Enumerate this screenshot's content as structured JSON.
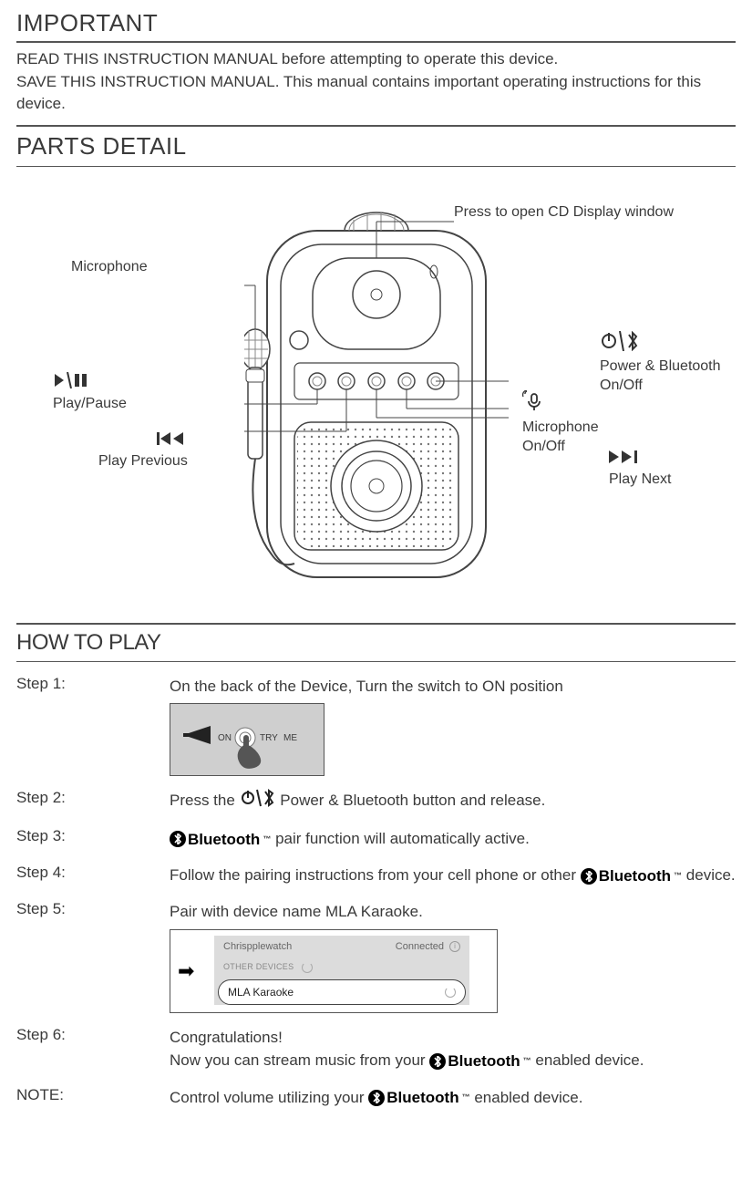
{
  "important": {
    "heading": "IMPORTANT",
    "line1": "READ THIS INSTRUCTION MANUAL before attempting to operate this device.",
    "line2": "SAVE THIS INSTRUCTION MANUAL. This manual contains important operating instructions for this device."
  },
  "parts": {
    "heading": "PARTS DETAIL",
    "labels": {
      "cd_window": "Press to open CD Display window",
      "microphone": "Microphone",
      "play_pause": "Play/Pause",
      "play_previous": "Play Previous",
      "power_bt": "Power & Bluetooth\nOn/Off",
      "mic_onoff": "Microphone\nOn/Off",
      "play_next": "Play Next"
    }
  },
  "howto": {
    "heading": "HOW TO PLAY",
    "steps": {
      "s1": {
        "label": "Step 1:",
        "text": "On the back of the Device, Turn the switch to ON position"
      },
      "s2": {
        "label": "Step 2:",
        "pre": "Press the ",
        "post": " Power & Bluetooth button and release."
      },
      "s3": {
        "label": "Step 3:",
        "post": " pair function will automatically active."
      },
      "s4": {
        "label": "Step 4:",
        "pre": "Follow the pairing instructions from your cell phone or other ",
        "post": " device."
      },
      "s5": {
        "label": "Step 5:",
        "text": "Pair with device name MLA Karaoke."
      },
      "s6": {
        "label": "Step 6:",
        "line1": "Congratulations!",
        "line2a": "Now you can stream music from your ",
        "line2b": " enabled device."
      },
      "note": {
        "label": "NOTE:",
        "pre": "Control volume  utilizing your ",
        "post": " enabled device."
      }
    },
    "switch": {
      "on": "ON",
      "try": "TRY",
      "me": "ME"
    },
    "pairbox": {
      "row1_name": "Chrispplewatch",
      "row1_status": "Connected",
      "other_hdr": "OTHER DEVICES",
      "device": "MLA Karaoke"
    },
    "bluetooth_word": "Bluetooth"
  },
  "colors": {
    "text": "#3a3a3a",
    "rule": "#555555",
    "grey_fill": "#cfcfcf",
    "grey_soft": "#dcdcdc"
  }
}
